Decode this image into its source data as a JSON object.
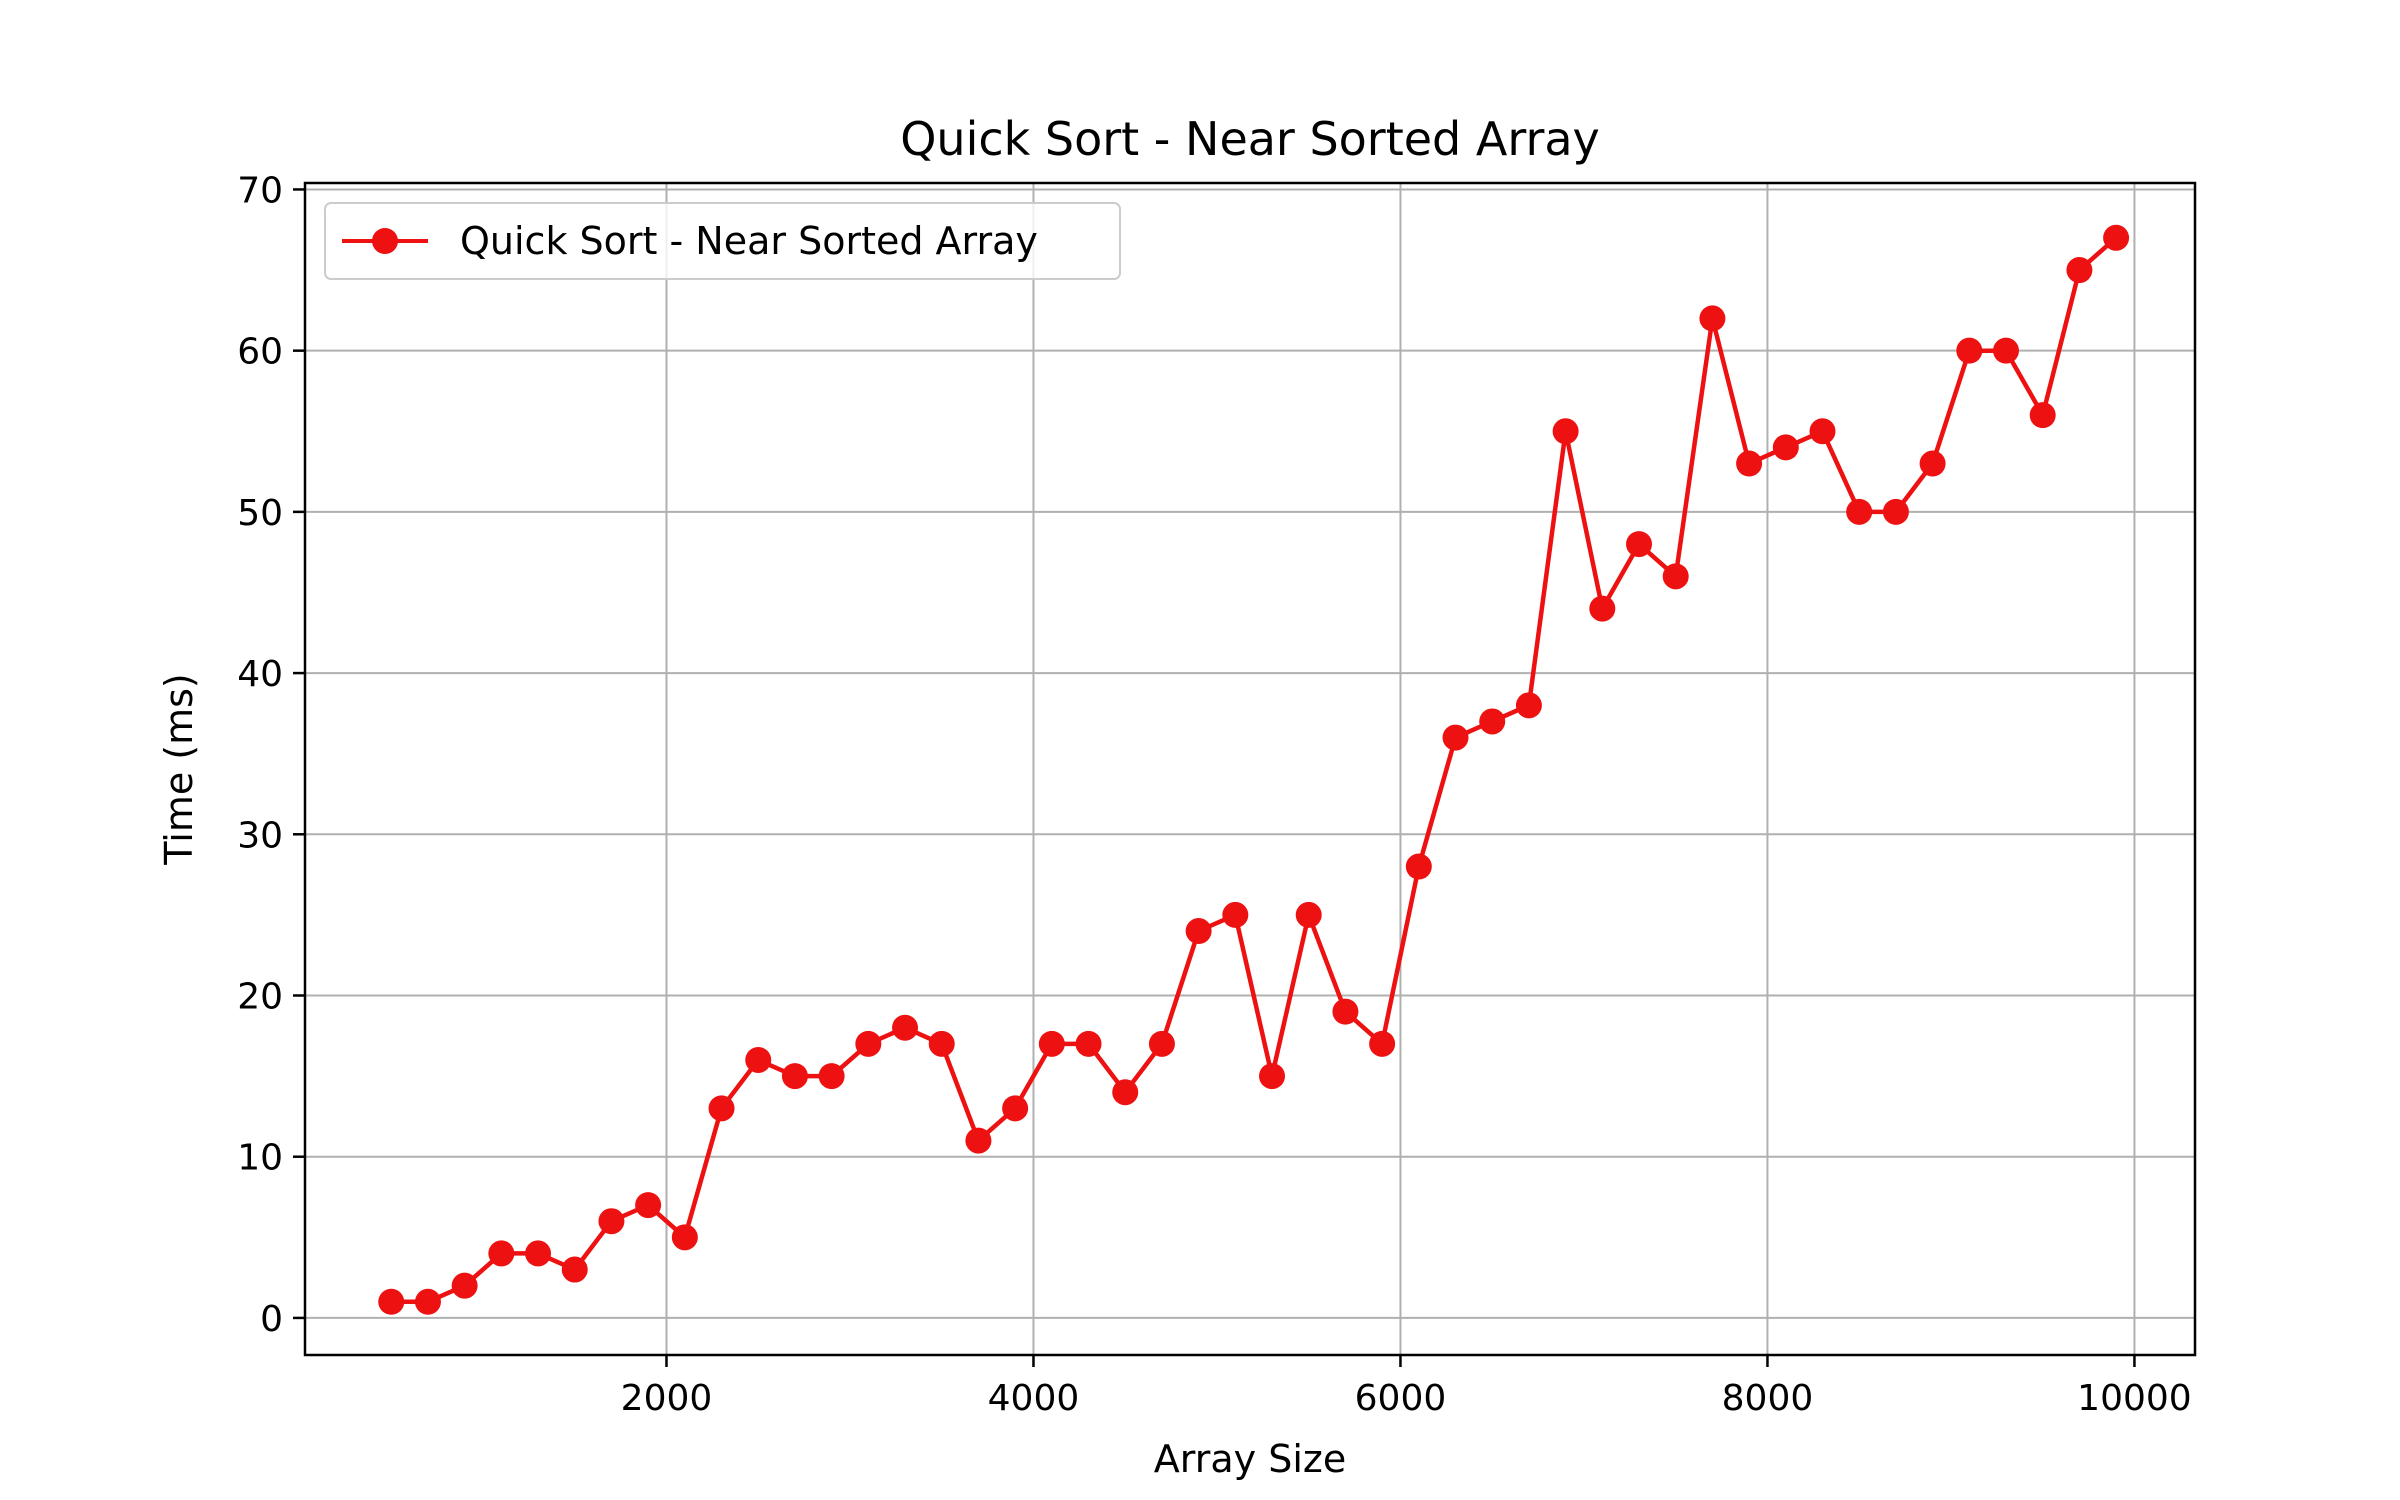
{
  "chart_data": {
    "type": "line",
    "title": "Quick Sort - Near Sorted Array",
    "xlabel": "Array Size",
    "ylabel": "Time (ms)",
    "xlim": [
      30,
      10330
    ],
    "ylim": [
      -2.3,
      70.4
    ],
    "xticks": [
      2000,
      4000,
      6000,
      8000,
      10000
    ],
    "yticks": [
      0,
      10,
      20,
      30,
      40,
      50,
      60,
      70
    ],
    "grid": true,
    "legend_position": "top-left",
    "series": [
      {
        "name": "Quick Sort - Near Sorted Array",
        "color": "#ee1111",
        "marker": "circle",
        "x": [
          500,
          700,
          900,
          1100,
          1300,
          1500,
          1700,
          1900,
          2100,
          2300,
          2500,
          2700,
          2900,
          3100,
          3300,
          3500,
          3700,
          3900,
          4100,
          4300,
          4500,
          4700,
          4900,
          5100,
          5300,
          5500,
          5700,
          5900,
          6100,
          6300,
          6500,
          6700,
          6900,
          7100,
          7300,
          7500,
          7700,
          7900,
          8100,
          8300,
          8500,
          8700,
          8900,
          9100,
          9300,
          9500,
          9700,
          9900
        ],
        "y": [
          1,
          1,
          2,
          4,
          4,
          3,
          6,
          7,
          5,
          13,
          16,
          15,
          15,
          17,
          18,
          17,
          11,
          13,
          17,
          17,
          14,
          17,
          24,
          25,
          15,
          25,
          19,
          17,
          28,
          36,
          37,
          38,
          55,
          44,
          48,
          46,
          62,
          53,
          54,
          55,
          50,
          50,
          53,
          60,
          60,
          56,
          65,
          67
        ]
      }
    ]
  }
}
